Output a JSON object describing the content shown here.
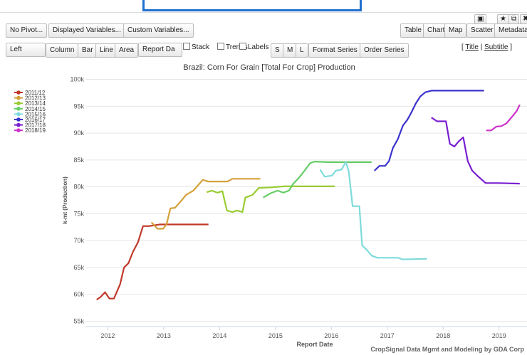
{
  "toolbar": {
    "row1": [
      "No Pivot...",
      "Displayed Variables...",
      "Custom Variables..."
    ],
    "views": [
      "Table",
      "Chart",
      "Map",
      "Scatter",
      "Metadata"
    ],
    "axis_select": "Left",
    "chart_types": [
      "Column",
      "Bar",
      "Line",
      "Area"
    ],
    "date_select": "Report Da",
    "checkboxes": [
      "Stack",
      "Trends",
      "Labels"
    ],
    "sizes": [
      "S",
      "M",
      "L"
    ],
    "series_buttons": [
      "Format Series",
      "Order Series"
    ],
    "links": [
      "Title",
      "Subtitle"
    ]
  },
  "chart_data": {
    "type": "line",
    "title": "Brazil: Corn For Grain [Total For Crop] Production",
    "x_label": "Report Date",
    "y_label": "k-mt (Production)",
    "credit": "CropSignal Data Mgmt and Modeling by GDA Corp",
    "xlim": [
      2011.6,
      2019.5
    ],
    "xticks": [
      2012,
      2013,
      2014,
      2015,
      2016,
      2017,
      2018,
      2019
    ],
    "ylim": [
      54000,
      101000
    ],
    "yticks": [
      {
        "value": 55000,
        "label": "55k"
      },
      {
        "value": 60000,
        "label": "60k"
      },
      {
        "value": 65000,
        "label": "65k"
      },
      {
        "value": 70000,
        "label": "70k"
      },
      {
        "value": 75000,
        "label": "75k"
      },
      {
        "value": 80000,
        "label": "80k"
      },
      {
        "value": 85000,
        "label": "85k"
      },
      {
        "value": 90000,
        "label": "90k"
      },
      {
        "value": 95000,
        "label": "95k"
      },
      {
        "value": 100000,
        "label": "100k"
      }
    ],
    "grid": true,
    "legend": "top-left",
    "series": [
      {
        "name": "2011/12",
        "color": "#c0392b",
        "x": [
          2011.8,
          2011.87,
          2011.95,
          2012.03,
          2012.11,
          2012.22,
          2012.29,
          2012.37,
          2012.45,
          2012.54,
          2012.63,
          2012.74,
          2012.93,
          2013.8
        ],
        "values": [
          59000,
          59500,
          60400,
          59200,
          59200,
          61900,
          65000,
          65800,
          67900,
          69700,
          72700,
          72700,
          73000,
          73000
        ]
      },
      {
        "name": "2012/13",
        "color": "#d4a03a",
        "x": [
          2012.78,
          2012.89,
          2012.99,
          2013.05,
          2013.12,
          2013.2,
          2013.33,
          2013.4,
          2013.53,
          2013.7,
          2013.79,
          2014.14,
          2014.23,
          2014.73
        ],
        "values": [
          73400,
          72200,
          72200,
          73000,
          76000,
          76100,
          77600,
          78500,
          79300,
          81300,
          81000,
          81000,
          81500,
          81500
        ]
      },
      {
        "name": "2013/14",
        "color": "#99cc33",
        "x": [
          2013.77,
          2013.86,
          2013.96,
          2014.05,
          2014.13,
          2014.23,
          2014.31,
          2014.41,
          2014.46,
          2014.59,
          2014.7,
          2014.91,
          2015.16,
          2016.06
        ],
        "values": [
          79000,
          79300,
          78900,
          79200,
          75600,
          75300,
          75600,
          75300,
          78000,
          78500,
          79800,
          79900,
          80100,
          80100
        ]
      },
      {
        "name": "2014/15",
        "color": "#66cc66",
        "x": [
          2014.78,
          2014.91,
          2015.04,
          2015.14,
          2015.24,
          2015.32,
          2015.42,
          2015.52,
          2015.62,
          2015.7,
          2015.93,
          2016.72
        ],
        "values": [
          78000,
          78800,
          79300,
          78900,
          79300,
          80600,
          81700,
          83000,
          84400,
          84700,
          84600,
          84600
        ]
      },
      {
        "name": "2015/16",
        "color": "#7fdbdb",
        "x": [
          2015.8,
          2015.88,
          2016.01,
          2016.08,
          2016.18,
          2016.26,
          2016.31,
          2016.38,
          2016.5,
          2016.55,
          2016.64,
          2016.72,
          2016.82,
          2017.2,
          2017.27,
          2017.71
        ],
        "values": [
          83200,
          81900,
          82100,
          83000,
          83200,
          84600,
          83000,
          76400,
          76400,
          69100,
          68200,
          67200,
          66800,
          66800,
          66500,
          66600
        ]
      },
      {
        "name": "2016/17",
        "color": "#3a33cc",
        "x": [
          2016.77,
          2016.86,
          2016.96,
          2017.03,
          2017.1,
          2017.19,
          2017.28,
          2017.36,
          2017.43,
          2017.51,
          2017.59,
          2017.68,
          2017.79,
          2018.73
        ],
        "values": [
          83000,
          83900,
          83900,
          84800,
          87200,
          88900,
          91400,
          92500,
          93800,
          95500,
          96800,
          97600,
          97900,
          97900
        ]
      },
      {
        "name": "2017/18",
        "color": "#7a1fd1",
        "x": [
          2017.79,
          2017.89,
          2018.05,
          2018.12,
          2018.2,
          2018.28,
          2018.36,
          2018.44,
          2018.52,
          2018.63,
          2018.76,
          2018.99,
          2019.37
        ],
        "values": [
          92900,
          92200,
          92200,
          88000,
          87500,
          88500,
          89200,
          84800,
          83000,
          81900,
          80700,
          80700,
          80600
        ]
      },
      {
        "name": "2018/19",
        "color": "#cc33cc",
        "x": [
          2018.77,
          2018.86,
          2018.95,
          2019.04,
          2019.13,
          2019.23,
          2019.32,
          2019.37
        ],
        "values": [
          90500,
          90500,
          91200,
          91300,
          91800,
          93000,
          94200,
          95300
        ]
      }
    ]
  }
}
